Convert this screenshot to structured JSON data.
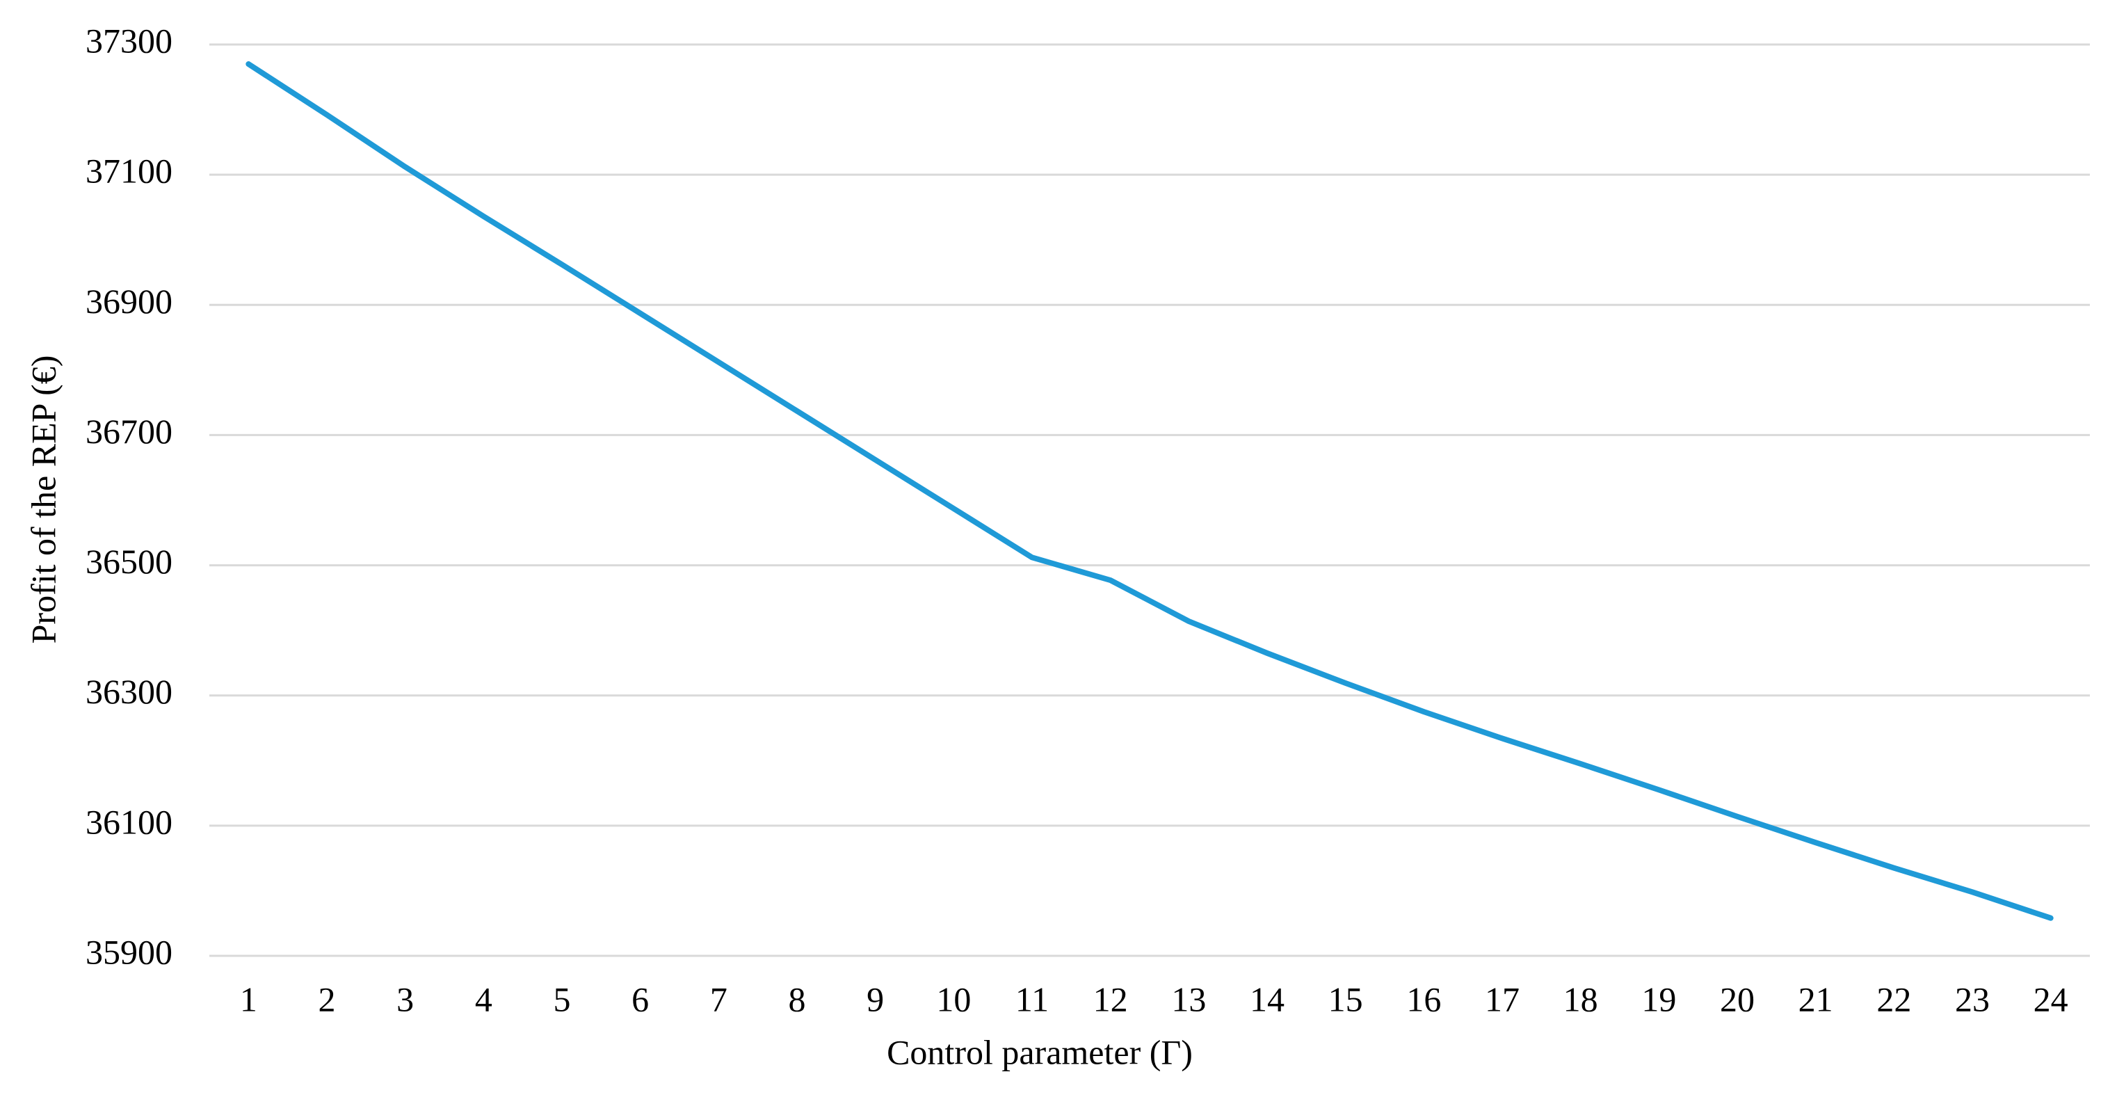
{
  "chart_data": {
    "type": "line",
    "x_label": "Control parameter (Γ)",
    "y_label": "Profit of the REP (€)",
    "categories": [
      "1",
      "2",
      "3",
      "4",
      "5",
      "6",
      "7",
      "8",
      "9",
      "10",
      "11",
      "12",
      "13",
      "14",
      "15",
      "16",
      "17",
      "18",
      "19",
      "20",
      "21",
      "22",
      "23",
      "24"
    ],
    "values": [
      37270,
      37192,
      37112,
      37036,
      36962,
      36887,
      36812,
      36737,
      36662,
      36587,
      36512,
      36477,
      36414,
      36365,
      36319,
      36275,
      36234,
      36195,
      36155,
      36114,
      36074,
      36035,
      35998,
      35958
    ],
    "color": "#1f9ad7",
    "ylim": [
      35900,
      37300
    ],
    "yticks": [
      35900,
      36100,
      36300,
      36500,
      36700,
      36900,
      37100,
      37300
    ],
    "grid": true
  }
}
